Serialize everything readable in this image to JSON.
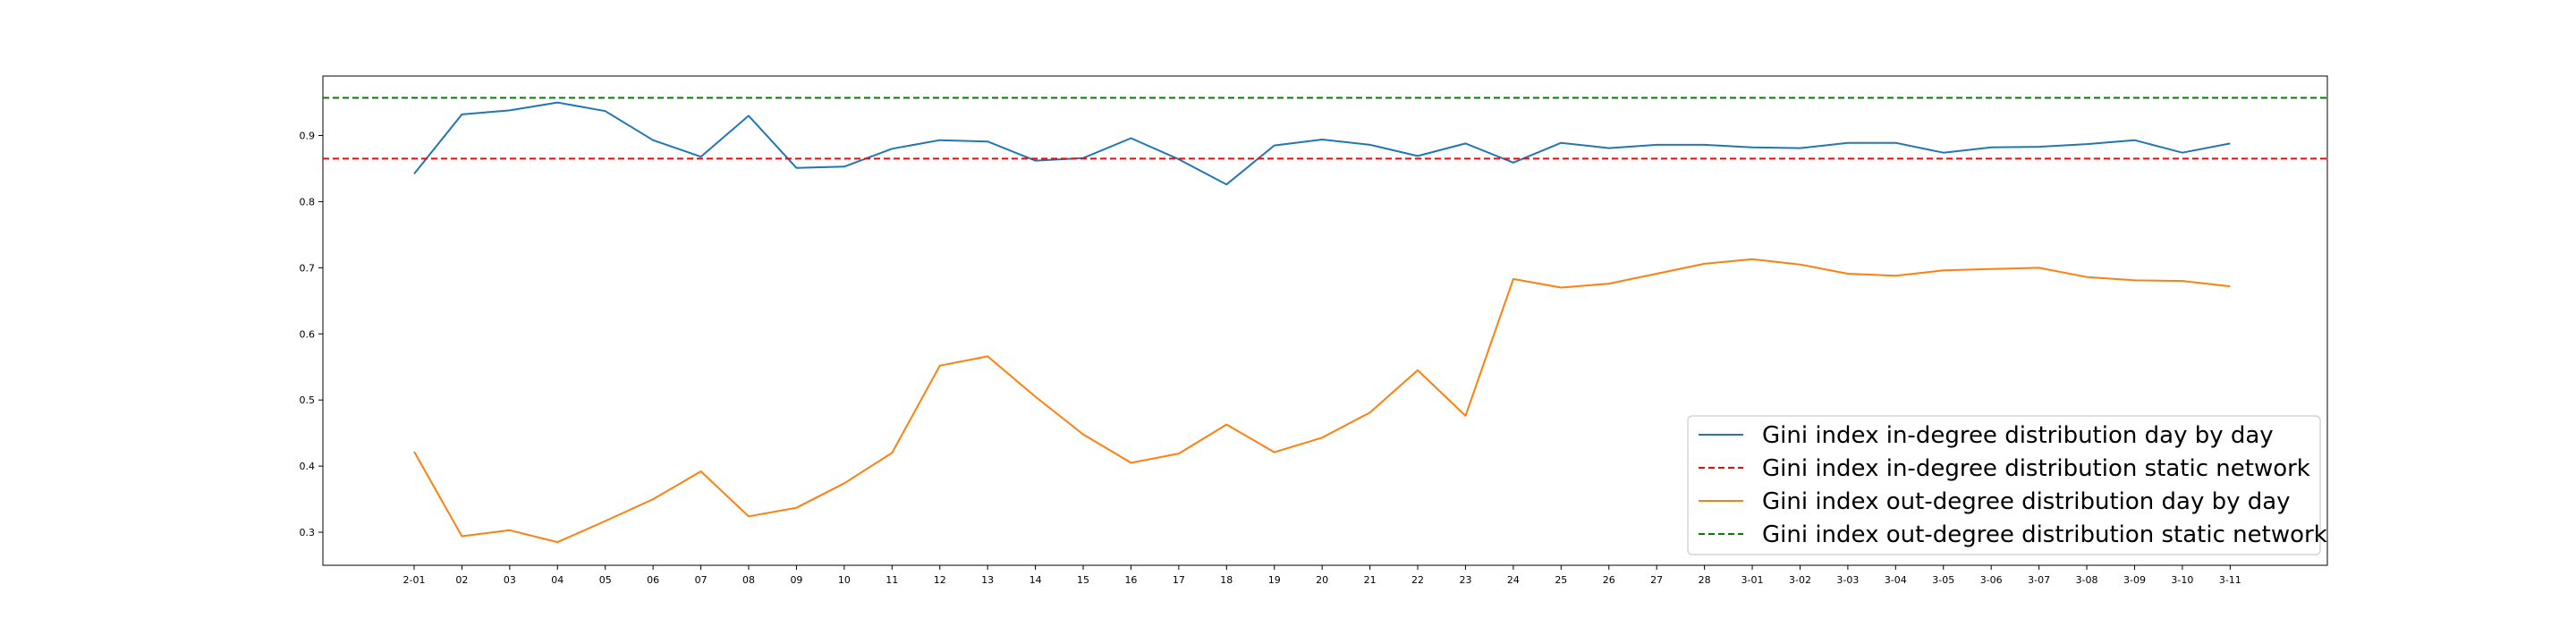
{
  "chart_data": {
    "type": "line",
    "title": "",
    "xlabel": "",
    "ylabel": "",
    "categories": [
      "2-01",
      "02",
      "03",
      "04",
      "05",
      "06",
      "07",
      "08",
      "09",
      "10",
      "11",
      "12",
      "13",
      "14",
      "15",
      "16",
      "17",
      "18",
      "19",
      "20",
      "21",
      "22",
      "23",
      "24",
      "25",
      "26",
      "27",
      "28",
      "3-01",
      "3-02",
      "3-03",
      "3-04",
      "3-05",
      "3-06",
      "3-07",
      "3-08",
      "3-09",
      "3-10",
      "3-11"
    ],
    "ylim": [
      0.25,
      0.99
    ],
    "yticks": [
      "0.3",
      "0.4",
      "0.5",
      "0.6",
      "0.7",
      "0.8",
      "0.9"
    ],
    "grid": false,
    "legend_position": "lower-right",
    "series": [
      {
        "name": "Gini index in-degree distribution day by day",
        "style": "solid",
        "color": "#1f77b4",
        "values": [
          0.842,
          0.932,
          0.938,
          0.95,
          0.937,
          0.893,
          0.868,
          0.93,
          0.851,
          0.853,
          0.88,
          0.893,
          0.891,
          0.862,
          0.866,
          0.896,
          0.864,
          0.826,
          0.885,
          0.894,
          0.886,
          0.869,
          0.888,
          0.859,
          0.889,
          0.881,
          0.886,
          0.886,
          0.882,
          0.881,
          0.889,
          0.889,
          0.874,
          0.882,
          0.883,
          0.887,
          0.893,
          0.874,
          0.888
        ]
      },
      {
        "name": "Gini index in-degree distribution static network",
        "style": "dashed",
        "color": "#ff0000",
        "constant": 0.865
      },
      {
        "name": "Gini index out-degree distribution day by day",
        "style": "solid",
        "color": "#ff7f0e",
        "values": [
          0.422,
          0.294,
          0.303,
          0.285,
          0.317,
          0.35,
          0.392,
          0.324,
          0.337,
          0.374,
          0.42,
          0.552,
          0.566,
          0.505,
          0.448,
          0.405,
          0.419,
          0.463,
          0.421,
          0.443,
          0.481,
          0.545,
          0.476,
          0.683,
          0.67,
          0.676,
          0.691,
          0.706,
          0.713,
          0.705,
          0.691,
          0.688,
          0.696,
          0.698,
          0.7,
          0.686,
          0.681,
          0.68,
          0.672
        ]
      },
      {
        "name": "Gini index out-degree distribution static network",
        "style": "dashed",
        "color": "#008000",
        "constant": 0.957
      }
    ]
  }
}
